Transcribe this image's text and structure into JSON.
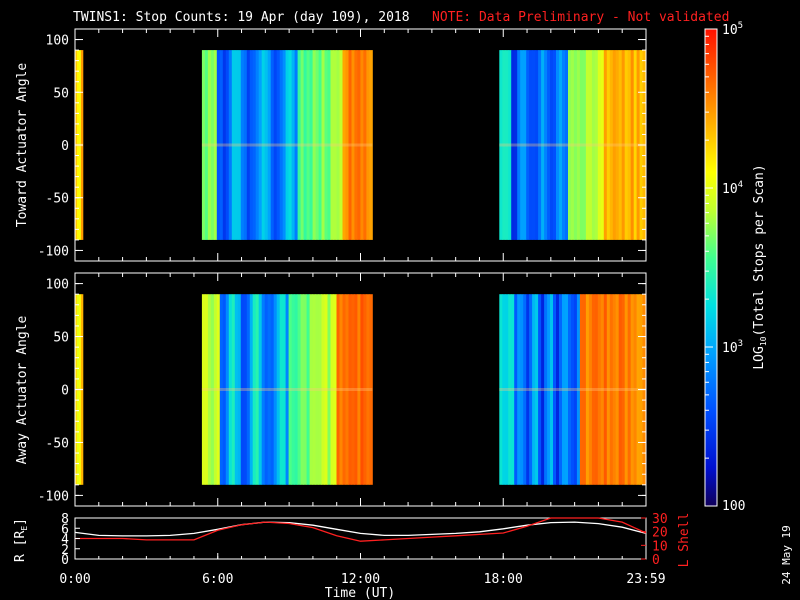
{
  "title": "TWINS1: Stop Counts: 19 Apr (day 109), 2018",
  "note": "NOTE: Data Preliminary - Not validated",
  "stamp": "24 May 19",
  "colorbar": {
    "label": "LOG10(Total Stops per Scan)",
    "label_main": "LOG",
    "label_sub": "10",
    "label_rest": "(Total Stops per Scan)",
    "ticks": [
      {
        "value": 100,
        "label": "100"
      },
      {
        "value": 1000,
        "label": "10",
        "exp": "3"
      },
      {
        "value": 10000,
        "label": "10",
        "exp": "4"
      },
      {
        "value": 100000,
        "label": "10",
        "exp": "5"
      }
    ],
    "scale": "log",
    "range": [
      100,
      100000
    ]
  },
  "chart_data": [
    {
      "type": "heatmap",
      "name": "toward",
      "ylabel": "Toward Actuator Angle",
      "ylim": [
        -110,
        110
      ],
      "yticks": [
        -100,
        -50,
        0,
        50,
        100
      ],
      "xlim_hours": [
        0,
        24
      ],
      "data_blocks": [
        {
          "t_start": "0:00",
          "t_end": "0:20",
          "angles": [
            -90,
            90
          ],
          "profile": "orange-mixed"
        },
        {
          "t_start": "5:20",
          "t_end": "12:30",
          "angles": [
            -90,
            90
          ],
          "profile": "green-blue-yellow-red"
        },
        {
          "t_start": "17:50",
          "t_end": "23:59",
          "angles": [
            -90,
            90
          ],
          "profile": "cyan-blue-yellow-orange"
        }
      ]
    },
    {
      "type": "heatmap",
      "name": "away",
      "ylabel": "Away Actuator Angle",
      "ylim": [
        -110,
        110
      ],
      "yticks": [
        -100,
        -50,
        0,
        50,
        100
      ],
      "xlim_hours": [
        0,
        24
      ],
      "data_blocks": [
        {
          "t_start": "0:00",
          "t_end": "0:20",
          "angles": [
            -90,
            90
          ],
          "profile": "orange-mixed"
        },
        {
          "t_start": "5:20",
          "t_end": "12:30",
          "angles": [
            -90,
            90
          ],
          "profile": "yellow-green-blue-orange"
        },
        {
          "t_start": "17:50",
          "t_end": "23:59",
          "angles": [
            -90,
            90
          ],
          "profile": "cyan-blue-orange-red"
        }
      ]
    },
    {
      "type": "line",
      "name": "ephemeris",
      "xlabel": "Time (UT)",
      "xticks": [
        "0:00",
        "6:00",
        "12:00",
        "18:00",
        "23:59"
      ],
      "ylabel_left": "R [RE]",
      "ylabel_left_main": "R [R",
      "ylabel_left_sub": "E",
      "ylabel_left_end": "]",
      "ylabel_right": "L Shell",
      "yticks_left": [
        0,
        2,
        4,
        6,
        8
      ],
      "yticks_right": [
        0,
        10,
        20,
        30
      ],
      "ylim_left": [
        0,
        8
      ],
      "ylim_right": [
        0,
        30
      ],
      "series": [
        {
          "name": "R [RE]",
          "color": "#ffffff",
          "x": [
            0,
            1,
            2,
            3,
            4,
            5,
            6,
            7,
            8,
            9,
            10,
            11,
            12,
            13,
            14,
            15,
            16,
            17,
            18,
            19,
            20,
            21,
            22,
            23,
            24
          ],
          "y": [
            5.2,
            4.6,
            4.5,
            4.5,
            4.6,
            5.0,
            5.8,
            6.7,
            7.2,
            7.1,
            6.6,
            5.8,
            5.0,
            4.6,
            4.6,
            4.8,
            5.0,
            5.3,
            5.9,
            6.6,
            7.1,
            7.2,
            6.9,
            6.2,
            5.0
          ]
        },
        {
          "name": "L Shell",
          "color": "#ff2020",
          "x": [
            0,
            1,
            2,
            3,
            4,
            5,
            6,
            7,
            8,
            9,
            10,
            11,
            12,
            13,
            14,
            15,
            16,
            17,
            18,
            19,
            20,
            21,
            22,
            23,
            24
          ],
          "y": [
            15,
            15,
            15,
            14,
            14,
            14,
            21,
            25,
            27,
            26,
            23,
            17,
            13,
            14,
            15,
            16,
            17,
            18,
            19,
            24,
            31,
            31,
            31,
            27,
            19
          ]
        }
      ]
    }
  ]
}
